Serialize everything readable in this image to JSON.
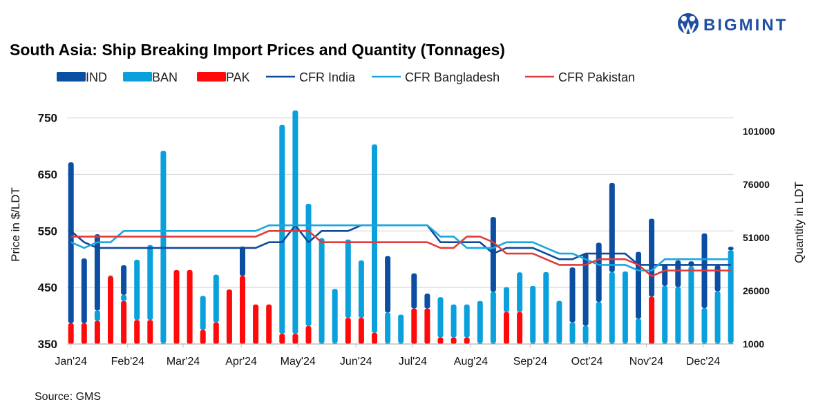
{
  "logo_text": "BIGMINT",
  "source": "Source: GMS",
  "chart_data": {
    "type": "bar+line",
    "title": "South Asia: Ship Breaking Import Prices and Quantity (Tonnages)",
    "ylabel_left": "Price in $/LDT",
    "ylabel_right": "Quantity in LDT",
    "ylim_left": [
      350,
      750
    ],
    "yticks_left": [
      350,
      450,
      550,
      650,
      750
    ],
    "ylim_right": [
      1000,
      101000
    ],
    "yticks_right": [
      1000,
      26000,
      51000,
      76000,
      101000
    ],
    "x_tick_labels": [
      "Jan'24",
      "Feb'24",
      "Mar'24",
      "Apr'24",
      "May'24",
      "Jun'24",
      "Jul'24",
      "Aug'24",
      "Sep'24",
      "Oct'24",
      "Nov'24",
      "Dec'24"
    ],
    "grid": true,
    "legend_placement": "top-left",
    "stacked_bars": true,
    "colors": {
      "IND": "#0b4ea2",
      "BAN": "#0aa0dc",
      "PAK": "#ff0a0a",
      "CFR India": "#0d4a9a",
      "CFR Bangladesh": "#1aa6de",
      "CFR Pakistan": "#e23a3a"
    },
    "legend": [
      "IND",
      "BAN",
      "PAK",
      "CFR India",
      "CFR Bangladesh",
      "CFR Pakistan"
    ],
    "bar_series": [
      {
        "name": "PAK",
        "axis": "right",
        "values": [
          10800,
          10800,
          11900,
          32800,
          21200,
          12300,
          12300,
          1400,
          35800,
          35800,
          7600,
          11200,
          26600,
          33000,
          19600,
          19600,
          5800,
          5800,
          9500,
          1400,
          1400,
          13300,
          13300,
          6300,
          1400,
          1400,
          17700,
          17700,
          4100,
          4100,
          4100,
          1400,
          1400,
          16000,
          16000,
          1400,
          1400,
          1400,
          1400,
          1400,
          1400,
          1400,
          1400,
          1400,
          23300,
          1400,
          1400,
          1400,
          1400,
          1400,
          1400
        ]
      },
      {
        "name": "BAN",
        "axis": "right",
        "values": [
          0,
          0,
          4900,
          0,
          2900,
          28300,
          35200,
          90400,
          0,
          0,
          16000,
          22400,
          0,
          0,
          0,
          0,
          98200,
          105000,
          57400,
          49300,
          25500,
          36800,
          27000,
          88500,
          14400,
          13400,
          0,
          0,
          18900,
          15500,
          15500,
          19800,
          24100,
          11700,
          18700,
          26900,
          33400,
          19900,
          9800,
          8200,
          19400,
          33400,
          33700,
          11500,
          0,
          26900,
          26400,
          36100,
          16500,
          24400,
          43700
        ]
      },
      {
        "name": "IND",
        "axis": "right",
        "values": [
          75600,
          30400,
          35800,
          300,
          13900,
          0,
          0,
          0,
          0,
          0,
          0,
          0,
          0,
          13800,
          0,
          0,
          0,
          0,
          0,
          0,
          0,
          0,
          0,
          0,
          26500,
          0,
          16500,
          7000,
          0,
          0,
          0,
          0,
          35200,
          0,
          0,
          0,
          0,
          0,
          25800,
          33900,
          27800,
          41900,
          0,
          31400,
          36600,
          10300,
          12500,
          2400,
          35100,
          12200,
          1600
        ]
      }
    ],
    "line_series": [
      {
        "name": "CFR India",
        "axis": "left",
        "values": [
          550,
          530,
          520,
          520,
          520,
          520,
          520,
          520,
          520,
          520,
          520,
          520,
          520,
          520,
          520,
          530,
          530,
          560,
          530,
          550,
          550,
          550,
          560,
          560,
          560,
          560,
          560,
          560,
          530,
          530,
          530,
          530,
          510,
          520,
          520,
          520,
          510,
          500,
          500,
          510,
          510,
          510,
          510,
          490,
          490,
          490,
          490,
          490,
          490,
          490,
          490
        ]
      },
      {
        "name": "CFR Bangladesh",
        "axis": "left",
        "values": [
          530,
          520,
          530,
          530,
          550,
          550,
          550,
          550,
          550,
          550,
          550,
          550,
          550,
          550,
          550,
          560,
          560,
          560,
          560,
          560,
          560,
          560,
          560,
          560,
          560,
          560,
          560,
          560,
          540,
          540,
          520,
          520,
          520,
          530,
          530,
          530,
          520,
          510,
          510,
          500,
          490,
          490,
          490,
          480,
          480,
          500,
          500,
          500,
          500,
          500,
          500
        ]
      },
      {
        "name": "CFR Pakistan",
        "axis": "left",
        "values": [
          540,
          540,
          540,
          540,
          540,
          540,
          540,
          540,
          540,
          540,
          540,
          540,
          540,
          540,
          540,
          550,
          550,
          550,
          550,
          530,
          530,
          530,
          530,
          530,
          530,
          530,
          530,
          530,
          520,
          520,
          540,
          540,
          530,
          510,
          510,
          510,
          500,
          490,
          490,
          490,
          500,
          500,
          500,
          490,
          470,
          480,
          480,
          480,
          480,
          480,
          480
        ]
      }
    ]
  }
}
